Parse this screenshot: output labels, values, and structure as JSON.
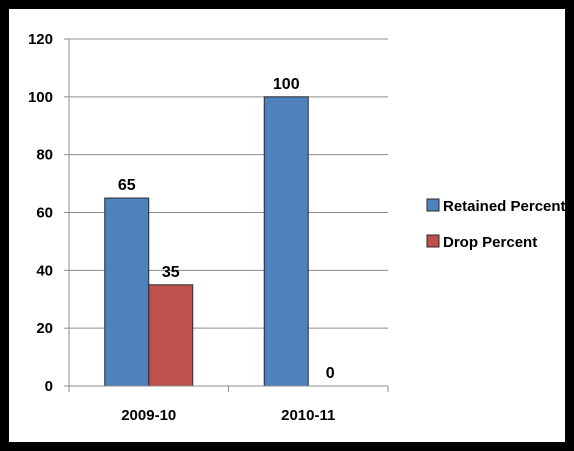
{
  "chart_data": {
    "type": "bar",
    "categories": [
      "2009-10",
      "2010-11"
    ],
    "series": [
      {
        "name": "Retained Percent",
        "values": [
          65,
          100
        ],
        "color": "#4f81bd"
      },
      {
        "name": "Drop Percent",
        "values": [
          35,
          0
        ],
        "color": "#c0504d"
      }
    ],
    "data_labels": [
      [
        "65",
        "100"
      ],
      [
        "35",
        "0"
      ]
    ],
    "ylim": [
      0,
      120
    ],
    "yticks": [
      0,
      20,
      40,
      60,
      80,
      100,
      120
    ],
    "grid": true,
    "legend_position": "right"
  }
}
